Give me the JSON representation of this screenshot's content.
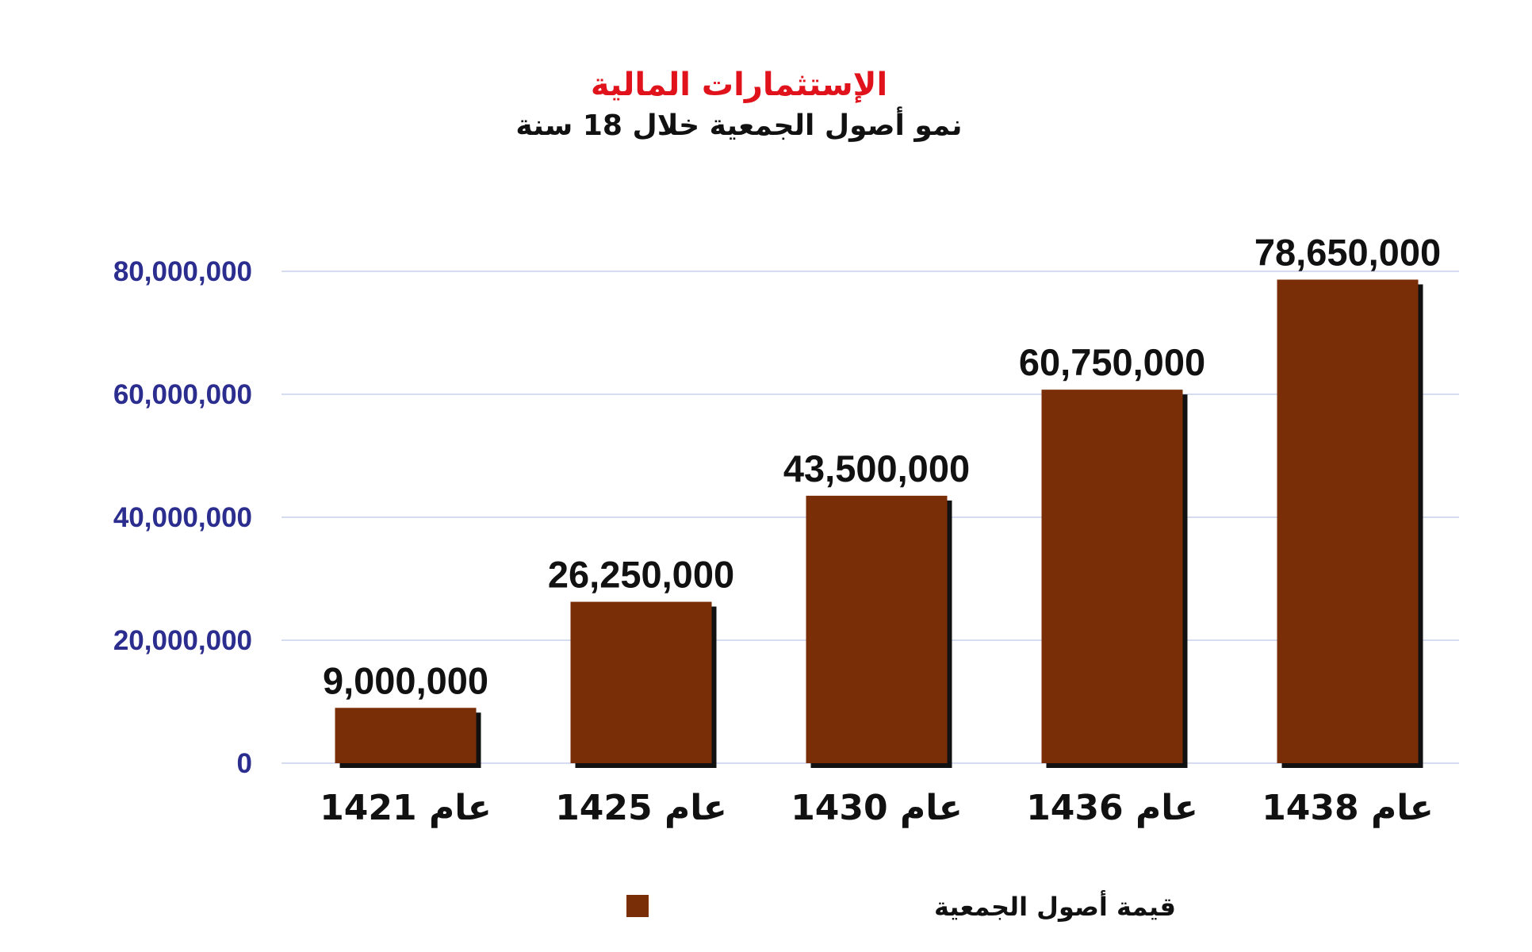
{
  "chart_data": {
    "type": "bar",
    "title": "الإستثمارات المالية",
    "subtitle": "نمو أصول الجمعية خلال 18 سنة",
    "categories": [
      "عام 1421",
      "عام 1425",
      "عام 1430",
      "عام 1436",
      "عام 1438"
    ],
    "series": [
      {
        "name": "قيمة أصول الجمعية",
        "values": [
          9000000,
          26250000,
          43500000,
          60750000,
          78650000
        ],
        "labels": [
          "9,000,000",
          "26,250,000",
          "43,500,000",
          "60,750,000",
          "78,650,000"
        ]
      }
    ],
    "ylim": [
      0,
      80000000
    ],
    "yticks": [
      0,
      20000000,
      40000000,
      60000000,
      80000000
    ],
    "ytick_labels": [
      "0",
      "20,000,000",
      "40,000,000",
      "60,000,000",
      "80,000,000"
    ],
    "grid": true,
    "legend": "bottom-center",
    "colors": {
      "bar": "#7a2e07",
      "bar_shadow": "#111111",
      "title": "#e0121c",
      "subtitle": "#111111",
      "ytick": "#2b2d8f",
      "grid": "#d6dcf0",
      "label": "#111111"
    }
  }
}
